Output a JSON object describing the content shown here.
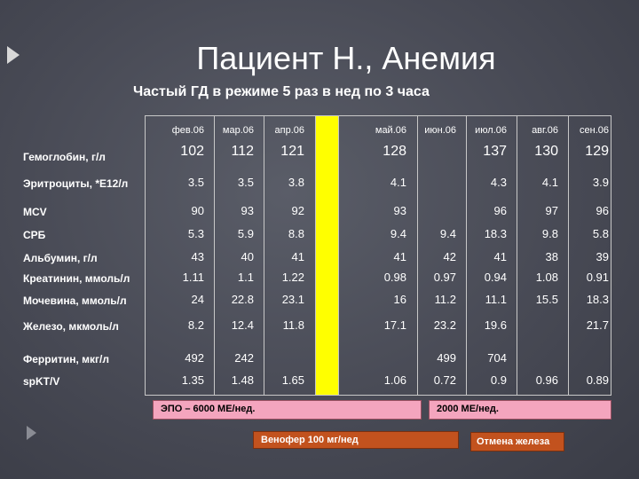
{
  "title": "Пациент Н., Анемия",
  "subtitle": "Частый ГД в режиме 5 раз в нед по 3 часа",
  "columns": [
    "фев.06",
    "мар.06",
    "апр.06",
    "",
    "май.06",
    "июн.06",
    "июл.06",
    "авг.06",
    "сен.06"
  ],
  "rows": [
    {
      "label": "Гемоглобин, г/л",
      "values": [
        "102",
        "112",
        "121",
        "",
        "128",
        "",
        "137",
        "130",
        "129"
      ]
    },
    {
      "label": "Эритроциты, *Е12/л",
      "values": [
        "3.5",
        "3.5",
        "3.8",
        "",
        "4.1",
        "",
        "4.3",
        "4.1",
        "3.9"
      ]
    },
    {
      "label": "MCV",
      "values": [
        "90",
        "93",
        "92",
        "",
        "93",
        "",
        "96",
        "97",
        "96"
      ]
    },
    {
      "label": "СРБ",
      "values": [
        "5.3",
        "5.9",
        "8.8",
        "",
        "9.4",
        "9.4",
        "18.3",
        "9.8",
        "5.8"
      ]
    },
    {
      "label": "Альбумин, г/л",
      "values": [
        "43",
        "40",
        "41",
        "",
        "41",
        "42",
        "41",
        "38",
        "39"
      ]
    },
    {
      "label": "Креатинин, ммоль/л",
      "values": [
        "1.11",
        "1.1",
        "1.22",
        "",
        "0.98",
        "0.97",
        "0.94",
        "1.08",
        "0.91"
      ]
    },
    {
      "label": "Мочевина, ммоль/л",
      "values": [
        "24",
        "22.8",
        "23.1",
        "",
        "16",
        "11.2",
        "11.1",
        "15.5",
        "18.3"
      ]
    },
    {
      "label": "Железо, мкмоль/л",
      "values": [
        "8.2",
        "12.4",
        "11.8",
        "",
        "17.1",
        "23.2",
        "19.6",
        "",
        "21.7"
      ]
    },
    {
      "label": "Ферритин, мкг/л",
      "values": [
        "492",
        "242",
        "",
        "",
        "",
        "499",
        "704",
        "",
        ""
      ]
    },
    {
      "label": "spKT/V",
      "values": [
        "1.35",
        "1.48",
        "1.65",
        "",
        "1.06",
        "0.72",
        "0.9",
        "0.96",
        "0.89"
      ]
    }
  ],
  "notes": {
    "epo1": "ЭПО – 6000 МЕ/нед.",
    "epo2": "2000 МЕ/нед.",
    "venofer": "Венофер 100 мг/нед",
    "iron_stop": "Отмена железа"
  },
  "colors": {
    "pink": "#f4a5be",
    "highlight": "#ffff00",
    "orange_brown": "#c2521e"
  }
}
